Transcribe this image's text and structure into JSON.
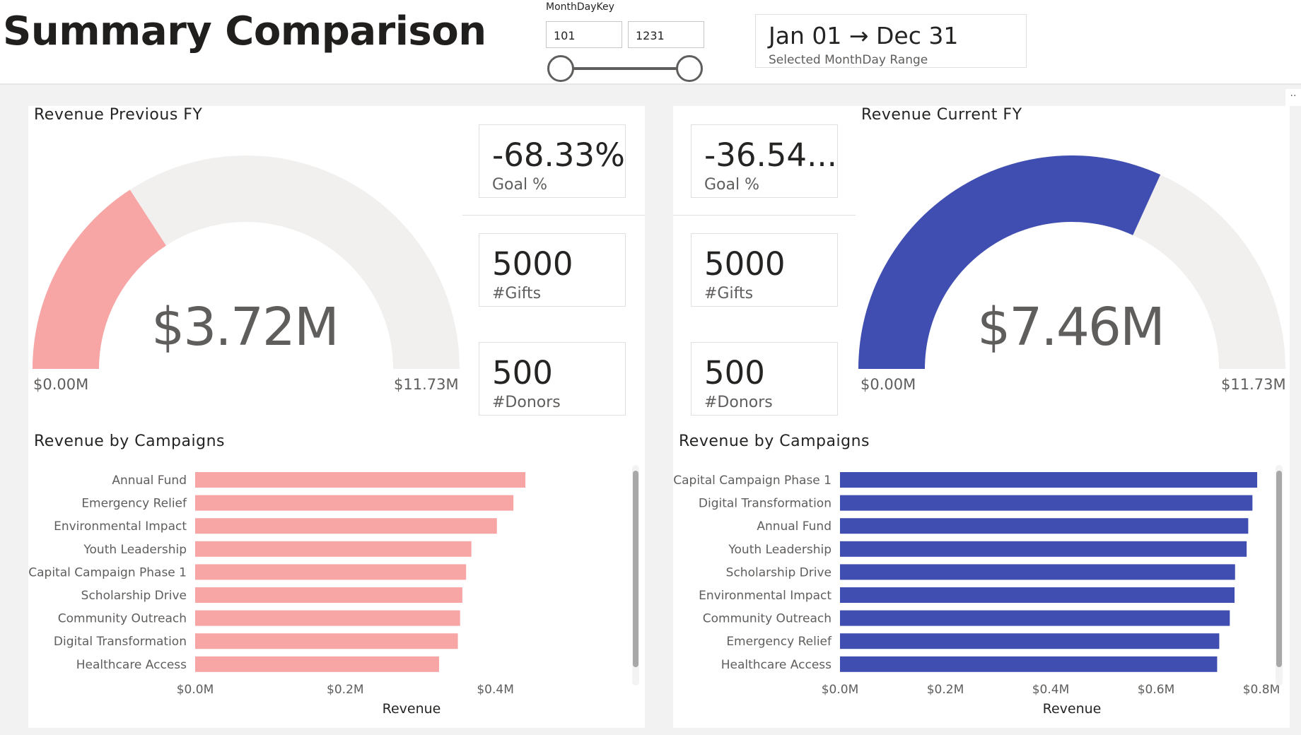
{
  "header": {
    "title": "Summary Comparison"
  },
  "slicer": {
    "label": "MonthDayKey",
    "from_value": "101",
    "to_value": "1231",
    "range_low": 0,
    "range_high": 1
  },
  "date_card": {
    "range": "Jan 01 → Dec 31",
    "caption": "Selected MonthDay Range"
  },
  "previous": {
    "gauge_title": "Revenue Previous FY",
    "gauge_value": "$3.72M",
    "gauge_fraction": 0.317,
    "gauge_min": "$0.00M",
    "gauge_max": "$11.73M",
    "goal_value": "-68.33%",
    "goal_label": "Goal %",
    "gifts_value": "5000",
    "gifts_label": "#Gifts",
    "donors_value": "500",
    "donors_label": "#Donors",
    "bar_title": "Revenue by Campaigns"
  },
  "current": {
    "gauge_title": "Revenue Current FY",
    "gauge_value": "$7.46M",
    "gauge_fraction": 0.636,
    "gauge_min": "$0.00M",
    "gauge_max": "$11.73M",
    "goal_value": "-36.54...",
    "goal_label": "Goal %",
    "gifts_value": "5000",
    "gifts_label": "#Gifts",
    "donors_value": "500",
    "donors_label": "#Donors",
    "bar_title": "Revenue by Campaigns"
  },
  "colors": {
    "previous_accent": "#f7a5a5",
    "current_accent": "#3f4eb0",
    "gauge_track": "#f1f0ef",
    "axis_text": "#605e5c"
  },
  "chart_data": [
    {
      "type": "bar",
      "orientation": "horizontal",
      "title": "Revenue by Campaigns",
      "xlabel": "Revenue",
      "ylabel": "",
      "xlim": [
        0,
        0.52
      ],
      "x_ticks": [
        "$0.0M",
        "$0.2M",
        "$0.4M"
      ],
      "x_tick_values": [
        0,
        0.2,
        0.4
      ],
      "categories": [
        "Annual Fund",
        "Emergency Relief",
        "Environmental Impact",
        "Youth Leadership",
        "Capital Campaign Phase 1",
        "Scholarship Drive",
        "Community Outreach",
        "Digital Transformation",
        "Healthcare Access"
      ],
      "values": [
        0.44,
        0.424,
        0.402,
        0.368,
        0.361,
        0.356,
        0.353,
        0.35,
        0.325
      ],
      "unit": "$M",
      "color": "#f7a5a5"
    },
    {
      "type": "bar",
      "orientation": "horizontal",
      "title": "Revenue by Campaigns",
      "xlabel": "Revenue",
      "ylabel": "",
      "xlim": [
        0,
        0.8
      ],
      "x_ticks": [
        "$0.0M",
        "$0.2M",
        "$0.4M",
        "$0.6M",
        "$0.8M"
      ],
      "x_tick_values": [
        0,
        0.2,
        0.4,
        0.6,
        0.8
      ],
      "categories": [
        "Capital Campaign Phase 1",
        "Digital Transformation",
        "Annual Fund",
        "Youth Leadership",
        "Scholarship Drive",
        "Environmental Impact",
        "Community Outreach",
        "Emergency Relief",
        "Healthcare Access"
      ],
      "values": [
        0.792,
        0.783,
        0.775,
        0.772,
        0.75,
        0.749,
        0.74,
        0.72,
        0.716
      ],
      "unit": "$M",
      "color": "#3f4eb0"
    }
  ]
}
